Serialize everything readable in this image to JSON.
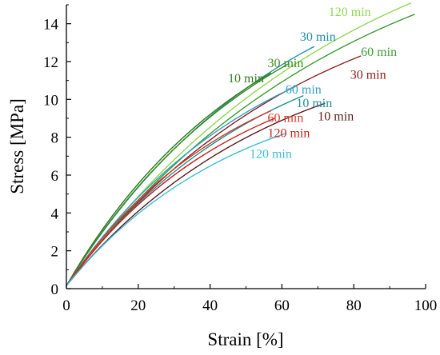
{
  "chart_data": {
    "type": "line",
    "title": "",
    "xlabel": "Strain [%]",
    "ylabel": "Stress [MPa]",
    "xlim": [
      0,
      100
    ],
    "ylim": [
      0,
      15
    ],
    "xticks": [
      "0",
      "20",
      "40",
      "60",
      "80",
      "100"
    ],
    "yticks": [
      "0",
      "2",
      "4",
      "6",
      "8",
      "10",
      "12",
      "14"
    ],
    "grid": false,
    "legend": "none",
    "series": [
      {
        "label": "120 min",
        "color": "#8ed84f",
        "end": [
          96,
          15.1
        ],
        "curve": 0.45,
        "label_pos": [
          73,
          14.4
        ]
      },
      {
        "label": "30 min",
        "color": "#1f8fa8",
        "end": [
          69,
          12.8
        ],
        "curve": 0.35,
        "label_pos": [
          65,
          13.1
        ]
      },
      {
        "label": "60 min",
        "color": "#3c9c2f",
        "end": [
          97,
          14.5
        ],
        "curve": 0.5,
        "label_pos": [
          82,
          12.3
        ]
      },
      {
        "label": "30 min",
        "color": "#3c8c20",
        "end": [
          62,
          11.9
        ],
        "curve": 0.25,
        "label_pos": [
          56,
          11.7
        ]
      },
      {
        "label": "30 min",
        "color": "#8b2020",
        "end": [
          82,
          12.3
        ],
        "curve": 0.5,
        "label_pos": [
          79,
          11.1
        ]
      },
      {
        "label": "10 min",
        "color": "#2e7d1e",
        "end": [
          57,
          11.4
        ],
        "curve": 0.3,
        "label_pos": [
          45,
          10.9
        ]
      },
      {
        "label": "60 min",
        "color": "#34a0c8",
        "end": [
          64,
          10.7
        ],
        "curve": 0.45,
        "label_pos": [
          61,
          10.3
        ]
      },
      {
        "label": "10 min",
        "color": "#1f8f8f",
        "end": [
          66,
          10.2
        ],
        "curve": 0.45,
        "label_pos": [
          64,
          9.6
        ]
      },
      {
        "label": "10 min",
        "color": "#5a1a1a",
        "end": [
          72,
          9.8
        ],
        "curve": 0.5,
        "label_pos": [
          70,
          8.9
        ]
      },
      {
        "label": "60 min",
        "color": "#d13a2a",
        "end": [
          57,
          9.4
        ],
        "curve": 0.5,
        "label_pos": [
          56,
          8.8
        ]
      },
      {
        "label": "120 min",
        "color": "#c8201c",
        "end": [
          58,
          9.0
        ],
        "curve": 0.5,
        "label_pos": [
          56,
          8.0
        ]
      },
      {
        "label": "120 min",
        "color": "#3cc0d8",
        "end": [
          61,
          8.2
        ],
        "curve": 0.6,
        "label_pos": [
          51,
          6.9
        ]
      }
    ]
  }
}
